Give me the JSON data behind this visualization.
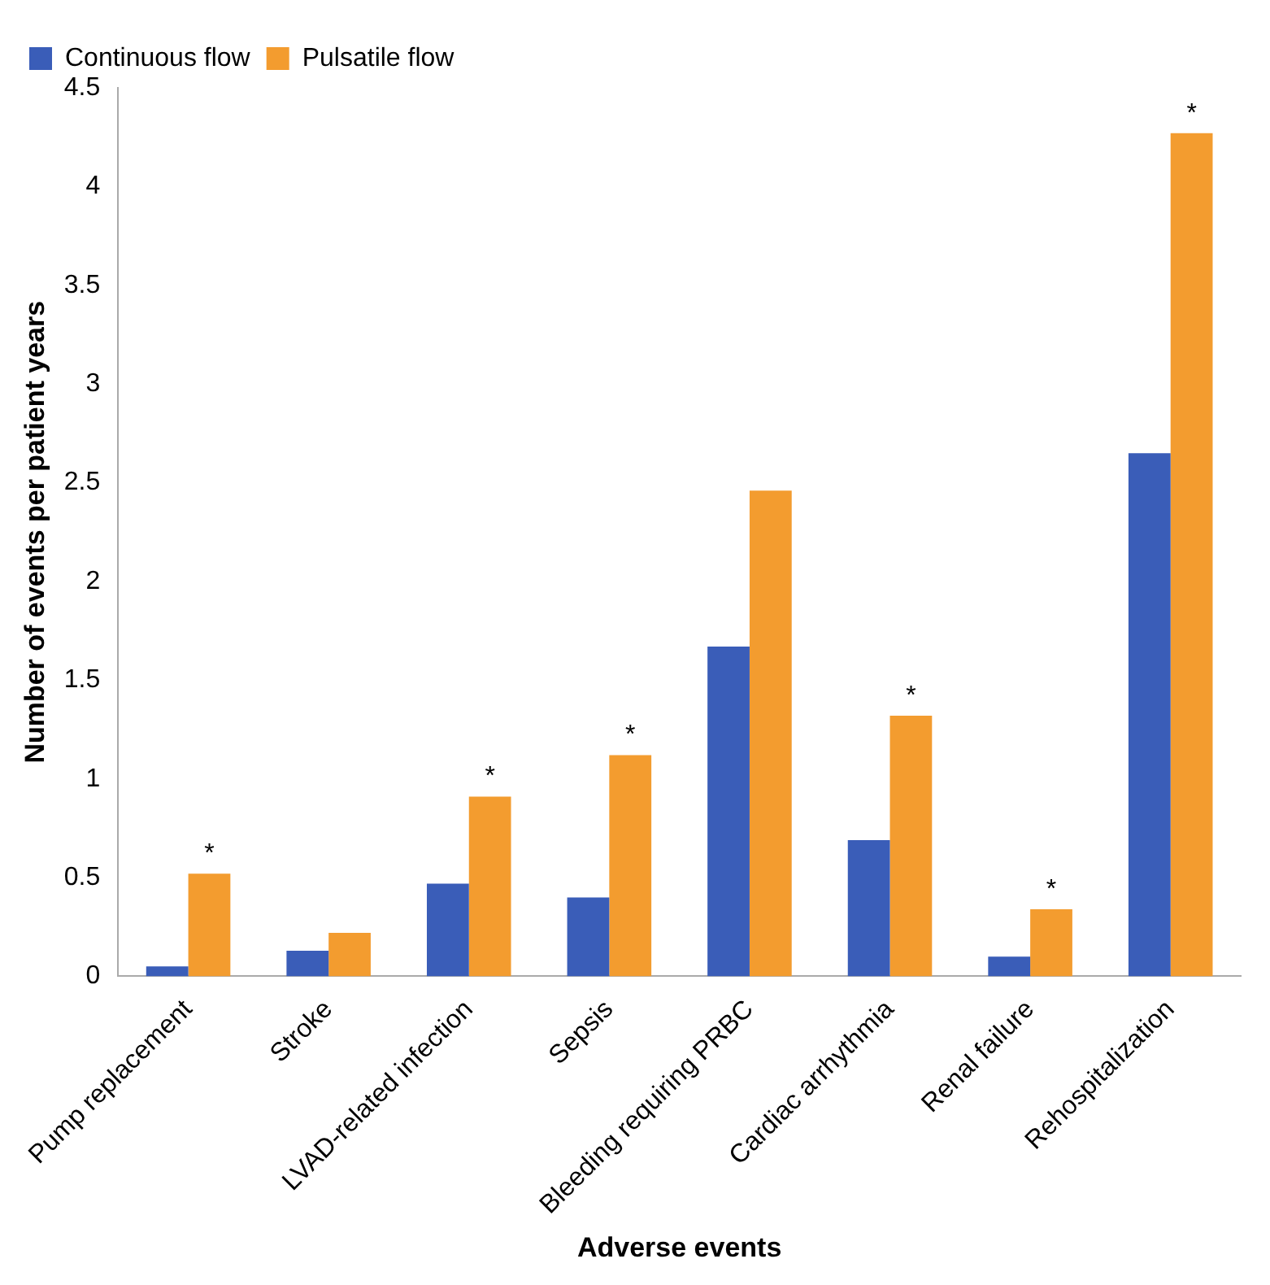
{
  "chart_data": {
    "type": "bar",
    "xlabel": "Adverse events",
    "ylabel": "Number of events per patient years",
    "categories": [
      "Pump replacement",
      "Stroke",
      "LVAD-related infection",
      "Sepsis",
      "Bleeding requiring PRBC",
      "Cardiac arrhythmia",
      "Renal failure",
      "Rehospitalization"
    ],
    "series": [
      {
        "name": "Continuous flow",
        "color": "#3a5db8",
        "values": [
          0.05,
          0.13,
          0.47,
          0.4,
          1.67,
          0.69,
          0.1,
          2.65
        ]
      },
      {
        "name": "Pulsatile flow",
        "color": "#f39c2f",
        "values": [
          0.52,
          0.22,
          0.91,
          1.12,
          2.46,
          1.32,
          0.34,
          4.27
        ]
      }
    ],
    "ylim": [
      0,
      4.5
    ],
    "yticks": [
      0,
      0.5,
      1,
      1.5,
      2,
      2.5,
      3,
      3.5,
      4,
      4.5
    ],
    "grid": false,
    "legend": "top left",
    "annotations": [
      {
        "text": "*",
        "x": "Pump replacement",
        "y": 0.52
      },
      {
        "text": "*",
        "x": "LVAD-related infection",
        "y": 0.91
      },
      {
        "text": "*",
        "x": "Sepsis",
        "y": 1.12
      },
      {
        "text": "*",
        "x": "Cardiac arrhythmia",
        "y": 1.32
      },
      {
        "text": "*",
        "x": "Renal failure",
        "y": 0.34
      },
      {
        "text": "*",
        "x": "Rehospitalization",
        "y": 4.27
      }
    ]
  }
}
